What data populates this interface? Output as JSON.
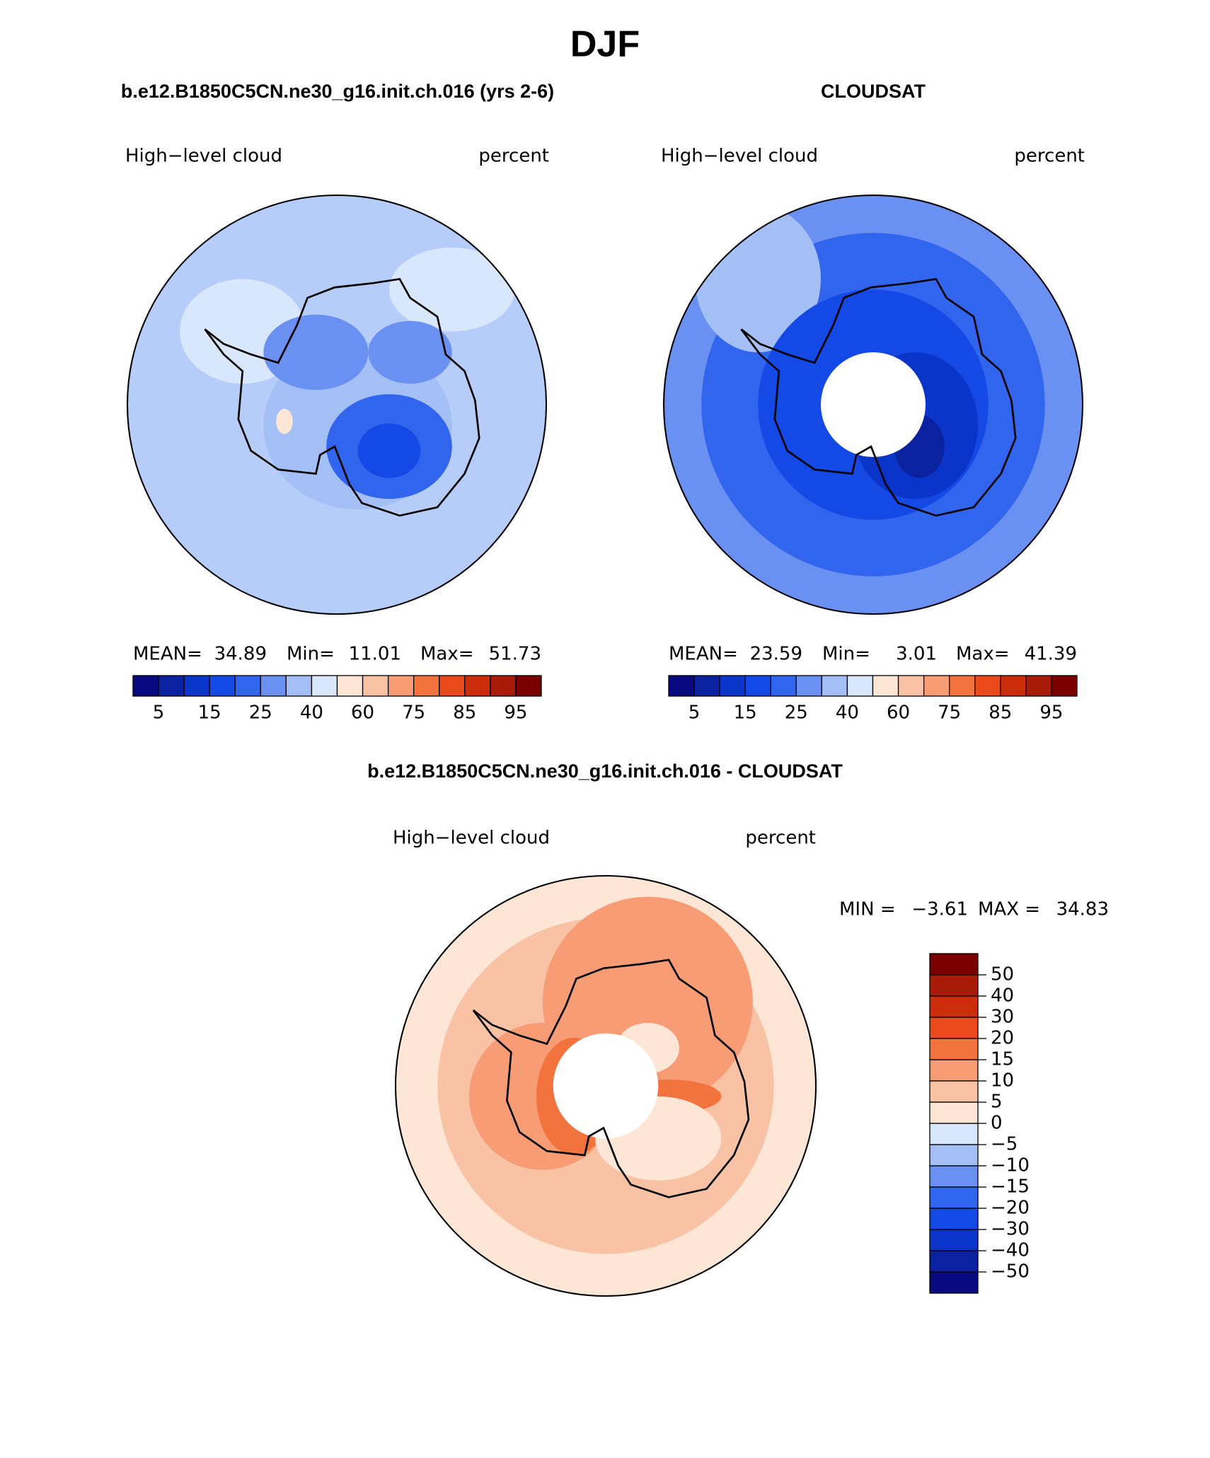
{
  "title": "DJF",
  "panels": [
    {
      "title": "b.e12.B1850C5CN.ne30_g16.init.ch.016 (yrs 2-6)",
      "variable": "High−level cloud",
      "units": "percent",
      "stats": [
        {
          "label": "MEAN=",
          "value": "34.89"
        },
        {
          "label": "Min=",
          "value": "11.01"
        },
        {
          "label": "Max=",
          "value": "51.73"
        }
      ],
      "colorbar_labels": [
        "5",
        "15",
        "25",
        "40",
        "60",
        "75",
        "85",
        "95"
      ]
    },
    {
      "title": "CLOUDSAT",
      "variable": "High−level cloud",
      "units": "percent",
      "stats": [
        {
          "label": "MEAN=",
          "value": "23.59"
        },
        {
          "label": "Min=",
          "value": "3.01"
        },
        {
          "label": "Max=",
          "value": "41.39"
        }
      ],
      "colorbar_labels": [
        "5",
        "15",
        "25",
        "40",
        "60",
        "75",
        "85",
        "95"
      ]
    }
  ],
  "difference": {
    "title": "b.e12.B1850C5CN.ne30_g16.init.ch.016 - CLOUDSAT",
    "variable": "High−level cloud",
    "units": "percent",
    "stats": [
      {
        "label": "MIN =",
        "value": "−3.61"
      },
      {
        "label": "MAX =",
        "value": "34.83"
      }
    ],
    "colorbar_labels": [
      "50",
      "40",
      "30",
      "20",
      "15",
      "10",
      "5",
      "0",
      "−5",
      "−10",
      "−15",
      "−20",
      "−30",
      "−40",
      "−50"
    ]
  },
  "colors": [
    "#0a0a80",
    "#0a22a0",
    "#0b35c8",
    "#1449e6",
    "#3265ee",
    "#6a90f2",
    "#a3bff6",
    "#d8e7fb",
    "#fde6d6",
    "#f9c2a4",
    "#f79c74",
    "#f3733f",
    "#e9491b",
    "#cc2e0c",
    "#a81b06",
    "#7a0000"
  ]
}
